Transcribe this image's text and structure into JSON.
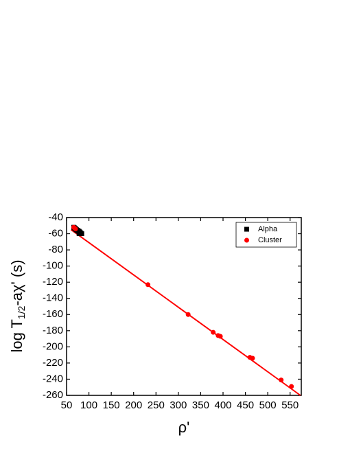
{
  "chart_data": {
    "type": "scatter",
    "xlabel": "ρ'",
    "ylabel_parts": [
      "log T",
      "1/2",
      "-aχ' (s)"
    ],
    "xlim": [
      50,
      575
    ],
    "ylim": [
      -260,
      -40
    ],
    "xticks": [
      50,
      100,
      150,
      200,
      250,
      300,
      350,
      400,
      450,
      500,
      550
    ],
    "yticks": [
      -40,
      -60,
      -80,
      -100,
      -120,
      -140,
      -160,
      -180,
      -200,
      -220,
      -240,
      -260
    ],
    "legend": "upper right",
    "series": [
      {
        "name": "Alpha",
        "color": "#000000",
        "marker": "square",
        "x": [
          66,
          67,
          68,
          69,
          70,
          71,
          72,
          73,
          74,
          75,
          76,
          77,
          78,
          79,
          80,
          82,
          84,
          78
        ],
        "values": [
          -52,
          -52.5,
          -53,
          -53.5,
          -54,
          -54.5,
          -55,
          -55.5,
          -56,
          -56,
          -56.5,
          -57,
          -57,
          -58,
          -58,
          -59,
          -60,
          -60
        ]
      },
      {
        "name": "Cluster",
        "color": "#ff0000",
        "marker": "circle",
        "x": [
          66,
          68,
          70,
          232,
          322,
          378,
          389,
          394,
          460,
          466,
          530,
          553
        ],
        "values": [
          -52,
          -53,
          -54,
          -123,
          -160,
          -182,
          -186,
          -187,
          -213,
          -214,
          -241,
          -249
        ]
      }
    ],
    "fit_line": {
      "color": "#ff0000",
      "x": [
        60,
        573
      ],
      "values": [
        -55,
        -260
      ]
    }
  }
}
